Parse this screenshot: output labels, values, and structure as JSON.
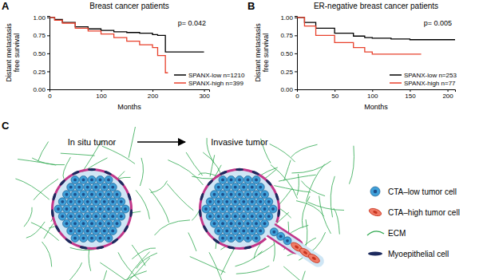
{
  "chart_data": [
    {
      "type": "step",
      "title": "Breast cancer patients",
      "annotations": [
        "A",
        "p= 0.042"
      ],
      "xlabel": "Months",
      "ylabel": "Distant metastasis free survival",
      "x": [
        0,
        10,
        25,
        50,
        75,
        100,
        125,
        150,
        175,
        200,
        210,
        225,
        230,
        260,
        300
      ],
      "series": [
        {
          "name": "SPANX-low n=1210",
          "color": "#000000",
          "values": [
            1.0,
            0.97,
            0.93,
            0.87,
            0.84,
            0.82,
            0.8,
            0.79,
            0.78,
            0.76,
            0.75,
            0.52,
            0.52,
            0.52,
            0.52
          ]
        },
        {
          "name": "SPANX-high n=399",
          "color": "#e8412c",
          "values": [
            1.0,
            0.96,
            0.92,
            0.85,
            0.81,
            0.77,
            0.72,
            0.67,
            0.62,
            0.58,
            0.47,
            0.23,
            0.23,
            null,
            null
          ]
        }
      ],
      "xlim": [
        0,
        310
      ],
      "xticks": [
        0,
        100,
        200,
        300
      ],
      "ylim": [
        0,
        1.02
      ],
      "yticks": [
        {
          "value": 0,
          "label": "0.00"
        },
        {
          "value": 0.25,
          "label": "0.25"
        },
        {
          "value": 0.5,
          "label": "0.50"
        },
        {
          "value": 0.75,
          "label": "0.75"
        },
        {
          "value": 1,
          "label": "1.00"
        }
      ],
      "legend": "lower right"
    },
    {
      "type": "step",
      "title": "ER-negative breast cancer patients",
      "annotations": [
        "B",
        "p= 0.005"
      ],
      "xlabel": "Months",
      "ylabel": "Distant metastasis free survival",
      "x": [
        0,
        10,
        25,
        50,
        75,
        90,
        100,
        125,
        150,
        165,
        175,
        200,
        210
      ],
      "series": [
        {
          "name": "SPANX-low n=253",
          "color": "#000000",
          "values": [
            1.0,
            0.93,
            0.85,
            0.78,
            0.74,
            0.72,
            0.71,
            0.7,
            0.69,
            0.69,
            0.69,
            0.69,
            0.69
          ]
        },
        {
          "name": "SPANX-high n=77",
          "color": "#e8412c",
          "values": [
            1.0,
            0.88,
            0.75,
            0.65,
            0.58,
            0.52,
            0.49,
            0.49,
            0.49,
            0.49,
            null,
            null,
            null
          ]
        }
      ],
      "xlim": [
        0,
        210
      ],
      "xticks": [
        0,
        50,
        100,
        150,
        200
      ],
      "ylim": [
        0,
        1.02
      ],
      "yticks": [
        {
          "value": 0,
          "label": "0.00"
        },
        {
          "value": 0.25,
          "label": "0.25"
        },
        {
          "value": 0.5,
          "label": "0.50"
        },
        {
          "value": 0.75,
          "label": "0.75"
        },
        {
          "value": 1,
          "label": "1.00"
        }
      ],
      "legend": "lower right"
    }
  ],
  "diagram": {
    "label": "C",
    "stages": [
      {
        "title": "In situ tumor"
      },
      {
        "title": "Invasive tumor"
      }
    ],
    "legend": [
      {
        "label": "CTA–low tumor cell"
      },
      {
        "label": "CTA–high tumor cell"
      },
      {
        "label": "ECM"
      },
      {
        "label": "Myoepithelial cell"
      }
    ]
  }
}
